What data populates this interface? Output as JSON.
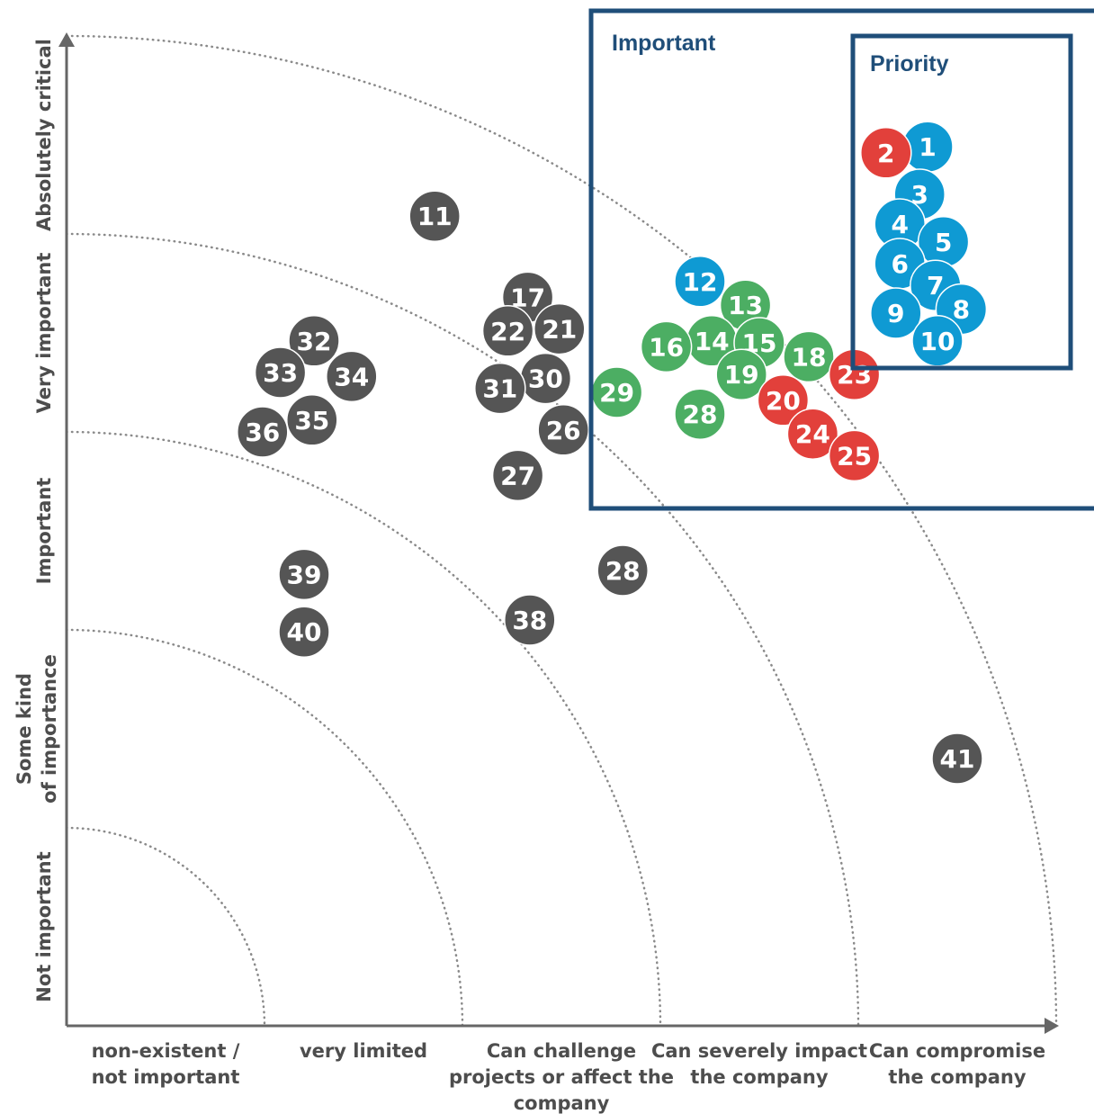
{
  "colors": {
    "gray": "#555555",
    "blue": "#0f9ad3",
    "green": "#4cae63",
    "red": "#e2403b",
    "box": "#1f4e79",
    "axis": "#666666",
    "label": "#4d4d4d"
  },
  "boxes": {
    "important_title": "Important",
    "priority_title": "Priority"
  },
  "chart_data": {
    "type": "scatter",
    "x_ticks": [
      [
        "non-existent /",
        "not important"
      ],
      [
        "very limited"
      ],
      [
        "Can challenge",
        "projects or affect the",
        "company"
      ],
      [
        "Can severely impact",
        "the company"
      ],
      [
        "Can compromise",
        "the company"
      ]
    ],
    "y_ticks": [
      [
        "Not important"
      ],
      [
        "Some kind",
        "of importance"
      ],
      [
        "Important"
      ],
      [
        "Very important"
      ],
      [
        "Absolutely critical"
      ]
    ],
    "xlim": [
      0,
      5
    ],
    "ylim": [
      0,
      5
    ],
    "points": [
      {
        "label": "1",
        "x": 4.35,
        "y": 4.44,
        "color": "blue"
      },
      {
        "label": "2",
        "x": 4.14,
        "y": 4.41,
        "color": "red"
      },
      {
        "label": "3",
        "x": 4.31,
        "y": 4.2,
        "color": "blue"
      },
      {
        "label": "4",
        "x": 4.21,
        "y": 4.05,
        "color": "blue"
      },
      {
        "label": "5",
        "x": 4.43,
        "y": 3.96,
        "color": "blue"
      },
      {
        "label": "6",
        "x": 4.21,
        "y": 3.85,
        "color": "blue"
      },
      {
        "label": "7",
        "x": 4.39,
        "y": 3.74,
        "color": "blue"
      },
      {
        "label": "8",
        "x": 4.52,
        "y": 3.62,
        "color": "blue"
      },
      {
        "label": "9",
        "x": 4.19,
        "y": 3.6,
        "color": "blue"
      },
      {
        "label": "10",
        "x": 4.4,
        "y": 3.46,
        "color": "blue"
      },
      {
        "label": "11",
        "x": 1.86,
        "y": 4.09,
        "color": "gray"
      },
      {
        "label": "12",
        "x": 3.2,
        "y": 3.76,
        "color": "blue"
      },
      {
        "label": "13",
        "x": 3.43,
        "y": 3.64,
        "color": "green"
      },
      {
        "label": "14",
        "x": 3.26,
        "y": 3.46,
        "color": "green"
      },
      {
        "label": "15",
        "x": 3.5,
        "y": 3.45,
        "color": "green"
      },
      {
        "label": "16",
        "x": 3.03,
        "y": 3.43,
        "color": "green"
      },
      {
        "label": "17",
        "x": 2.33,
        "y": 3.68,
        "color": "gray"
      },
      {
        "label": "18",
        "x": 3.75,
        "y": 3.38,
        "color": "green"
      },
      {
        "label": "19",
        "x": 3.41,
        "y": 3.29,
        "color": "green"
      },
      {
        "label": "20",
        "x": 3.62,
        "y": 3.16,
        "color": "red"
      },
      {
        "label": "21",
        "x": 2.49,
        "y": 3.52,
        "color": "gray"
      },
      {
        "label": "22",
        "x": 2.23,
        "y": 3.51,
        "color": "gray"
      },
      {
        "label": "23",
        "x": 3.98,
        "y": 3.29,
        "color": "red"
      },
      {
        "label": "24",
        "x": 3.77,
        "y": 2.99,
        "color": "red"
      },
      {
        "label": "25",
        "x": 3.98,
        "y": 2.88,
        "color": "red"
      },
      {
        "label": "26",
        "x": 2.51,
        "y": 3.01,
        "color": "gray"
      },
      {
        "label": "27",
        "x": 2.28,
        "y": 2.78,
        "color": "gray"
      },
      {
        "label": "28",
        "x": 3.2,
        "y": 3.09,
        "color": "green"
      },
      {
        "label": "28",
        "x": 2.81,
        "y": 2.3,
        "color": "gray"
      },
      {
        "label": "29",
        "x": 2.78,
        "y": 3.2,
        "color": "green"
      },
      {
        "label": "30",
        "x": 2.42,
        "y": 3.27,
        "color": "gray"
      },
      {
        "label": "31",
        "x": 2.19,
        "y": 3.22,
        "color": "gray"
      },
      {
        "label": "32",
        "x": 1.25,
        "y": 3.46,
        "color": "gray"
      },
      {
        "label": "33",
        "x": 1.08,
        "y": 3.3,
        "color": "gray"
      },
      {
        "label": "34",
        "x": 1.44,
        "y": 3.28,
        "color": "gray"
      },
      {
        "label": "35",
        "x": 1.24,
        "y": 3.06,
        "color": "gray"
      },
      {
        "label": "36",
        "x": 0.99,
        "y": 3.0,
        "color": "gray"
      },
      {
        "label": "38",
        "x": 2.34,
        "y": 2.05,
        "color": "gray"
      },
      {
        "label": "39",
        "x": 1.2,
        "y": 2.28,
        "color": "gray"
      },
      {
        "label": "40",
        "x": 1.2,
        "y": 1.99,
        "color": "gray"
      },
      {
        "label": "41",
        "x": 4.5,
        "y": 1.35,
        "color": "gray"
      }
    ]
  }
}
